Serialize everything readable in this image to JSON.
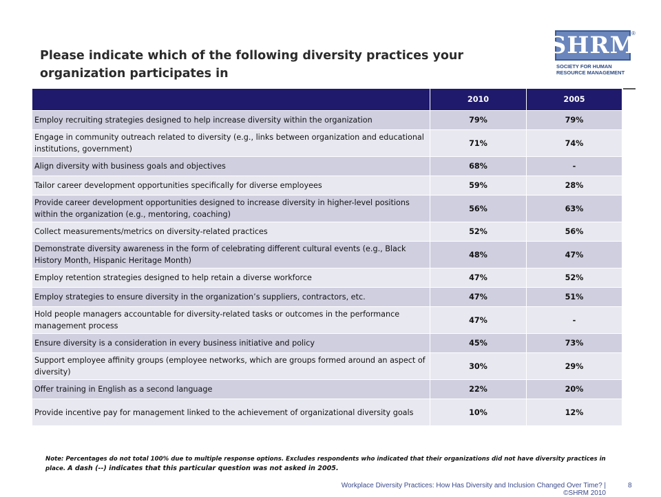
{
  "title": "Please indicate which of the following diversity practices your organization participates in",
  "logo": {
    "letters": "SHRM",
    "registered": "®",
    "tagline_line1": "SOCIETY FOR HUMAN",
    "tagline_line2": "RESOURCE MANAGEMENT"
  },
  "table": {
    "headers": [
      "",
      "2010",
      "2005"
    ],
    "rows": [
      {
        "practice": "Employ recruiting strategies designed to help increase diversity within the organization",
        "y2010": "79%",
        "y2005": "79%"
      },
      {
        "practice": "Engage in community outreach related to diversity (e.g., links between organization and educational institutions, government)",
        "y2010": "71%",
        "y2005": "74%"
      },
      {
        "practice": "Align diversity with business goals and objectives",
        "y2010": "68%",
        "y2005": "-"
      },
      {
        "practice": "Tailor career development opportunities specifically for diverse employees",
        "y2010": "59%",
        "y2005": "28%"
      },
      {
        "practice": "Provide career development opportunities designed to increase diversity in higher-level positions within the organization (e.g., mentoring, coaching)",
        "y2010": "56%",
        "y2005": "63%"
      },
      {
        "practice": "Collect measurements/metrics on diversity-related practices",
        "y2010": "52%",
        "y2005": "56%"
      },
      {
        "practice": "Demonstrate diversity awareness in the form of celebrating different cultural events (e.g., Black History Month, Hispanic Heritage Month)",
        "y2010": "48%",
        "y2005": "47%"
      },
      {
        "practice": "Employ retention strategies designed to help retain a diverse workforce",
        "y2010": "47%",
        "y2005": "52%"
      },
      {
        "practice": "Employ strategies to ensure diversity in the organization’s suppliers, contractors, etc.",
        "y2010": "47%",
        "y2005": "51%"
      },
      {
        "practice": "Hold people managers accountable for diversity-related tasks or outcomes in the performance management process",
        "y2010": "47%",
        "y2005": "-"
      },
      {
        "practice": "Ensure diversity is a consideration in every business initiative and policy",
        "y2010": "45%",
        "y2005": "73%"
      },
      {
        "practice": "Support employee affinity groups (employee networks, which are groups formed around an aspect of diversity)",
        "y2010": "30%",
        "y2005": "29%"
      },
      {
        "practice": "Offer training in English as a second language",
        "y2010": "22%",
        "y2005": "20%"
      },
      {
        "practice": "Provide incentive pay for management linked to the achievement of organizational diversity goals",
        "y2010": "10%",
        "y2005": "12%"
      }
    ]
  },
  "note": {
    "part1": "Note: Percentages do not total 100% due to multiple response options. Excludes respondents who indicated that their organizations did not have diversity practices in place.",
    "part2": "A dash (--) indicates that this particular question was not asked in 2005."
  },
  "footer": {
    "text": "Workplace Diversity Practices: How Has Diversity and Inclusion Changed Over Time? | ©SHRM 2010",
    "page": "8"
  },
  "colors": {
    "header_bg": "#1f1a6b",
    "row_odd": "#cfcfe0",
    "row_even": "#e8e8f0",
    "logo_blue": "#6a86bd"
  }
}
